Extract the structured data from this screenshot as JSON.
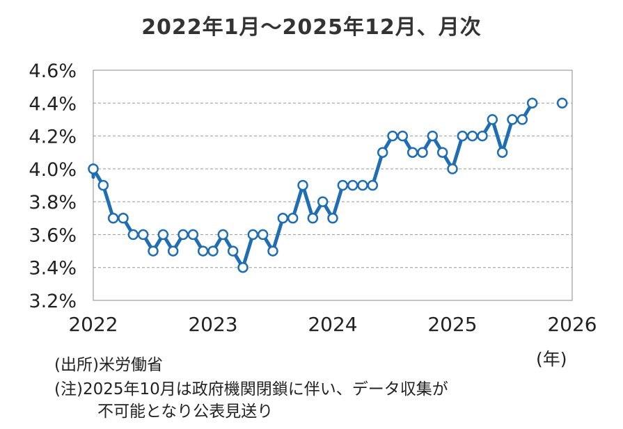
{
  "chart_data": {
    "type": "line",
    "title": "2022年1月～2025年12月、月次",
    "x_unit": "(年)",
    "x_ticks": [
      "2022",
      "2023",
      "2024",
      "2025",
      "2026"
    ],
    "y_ticks": [
      "3.2%",
      "3.4%",
      "3.6%",
      "3.8%",
      "4.0%",
      "4.2%",
      "4.4%",
      "4.6%"
    ],
    "ylim": [
      3.2,
      4.6
    ],
    "grid": true,
    "line_color": "#1f6db3",
    "series": [
      {
        "name": "",
        "x": [
          "2022-01",
          "2022-02",
          "2022-03",
          "2022-04",
          "2022-05",
          "2022-06",
          "2022-07",
          "2022-08",
          "2022-09",
          "2022-10",
          "2022-11",
          "2022-12",
          "2023-01",
          "2023-02",
          "2023-03",
          "2023-04",
          "2023-05",
          "2023-06",
          "2023-07",
          "2023-08",
          "2023-09",
          "2023-10",
          "2023-11",
          "2023-12",
          "2024-01",
          "2024-02",
          "2024-03",
          "2024-04",
          "2024-05",
          "2024-06",
          "2024-07",
          "2024-08",
          "2024-09",
          "2024-10",
          "2024-11",
          "2024-12",
          "2025-01",
          "2025-02",
          "2025-03",
          "2025-04",
          "2025-05",
          "2025-06",
          "2025-07",
          "2025-08",
          "2025-09",
          "2025-10",
          "2025-11",
          "2025-12"
        ],
        "values": [
          4.0,
          3.9,
          3.7,
          3.7,
          3.6,
          3.6,
          3.5,
          3.6,
          3.5,
          3.6,
          3.6,
          3.5,
          3.5,
          3.6,
          3.5,
          3.4,
          3.6,
          3.6,
          3.5,
          3.7,
          3.7,
          3.9,
          3.7,
          3.8,
          3.7,
          3.9,
          3.9,
          3.9,
          3.9,
          4.1,
          4.2,
          4.2,
          4.1,
          4.1,
          4.2,
          4.1,
          4.0,
          4.2,
          4.2,
          4.2,
          4.3,
          4.1,
          4.3,
          4.3,
          4.4,
          null,
          null,
          4.4
        ]
      }
    ]
  },
  "notes": {
    "source": "(出所)米労働省",
    "note_line1": "(注)2025年10月は政府機関閉鎖に伴い、データ収集が",
    "note_line2": "不可能となり公表見送り"
  }
}
